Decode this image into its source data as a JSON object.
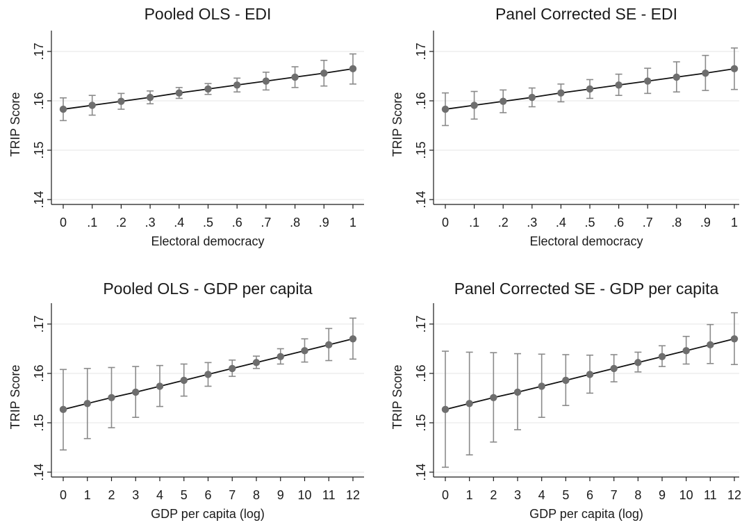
{
  "chart_data": [
    {
      "type": "scatter",
      "title": "Pooled OLS - EDI",
      "xlabel": "Electoral democracy",
      "ylabel": "TRIP Score",
      "x_ticks": [
        "0",
        ".1",
        ".2",
        ".3",
        ".4",
        ".5",
        ".6",
        ".7",
        ".8",
        ".9",
        "1"
      ],
      "y_ticks": [
        ".14",
        ".15",
        ".16",
        ".17"
      ],
      "xlim": [
        0,
        1
      ],
      "ylim": [
        0.14,
        0.17
      ],
      "grid": true,
      "series": [
        {
          "x": [
            0,
            0.1,
            0.2,
            0.3,
            0.4,
            0.5,
            0.6,
            0.7,
            0.8,
            0.9,
            1
          ],
          "y": [
            0.1583,
            0.1591,
            0.1599,
            0.1607,
            0.1616,
            0.1624,
            0.1632,
            0.164,
            0.1648,
            0.1656,
            0.1665
          ],
          "ci_low": [
            0.156,
            0.1571,
            0.1583,
            0.1594,
            0.1605,
            0.1613,
            0.1618,
            0.1622,
            0.1627,
            0.163,
            0.1634
          ],
          "ci_high": [
            0.1606,
            0.1611,
            0.1615,
            0.162,
            0.1627,
            0.1635,
            0.1646,
            0.1658,
            0.1669,
            0.1682,
            0.1695
          ]
        }
      ]
    },
    {
      "type": "scatter",
      "title": "Panel Corrected SE - EDI",
      "xlabel": "Electoral democracy",
      "ylabel": "TRIP Score",
      "x_ticks": [
        "0",
        ".1",
        ".2",
        ".3",
        ".4",
        ".5",
        ".6",
        ".7",
        ".8",
        ".9",
        "1"
      ],
      "y_ticks": [
        ".14",
        ".15",
        ".16",
        ".17"
      ],
      "xlim": [
        0,
        1
      ],
      "ylim": [
        0.14,
        0.17
      ],
      "grid": true,
      "series": [
        {
          "x": [
            0,
            0.1,
            0.2,
            0.3,
            0.4,
            0.5,
            0.6,
            0.7,
            0.8,
            0.9,
            1
          ],
          "y": [
            0.1583,
            0.1591,
            0.1599,
            0.1607,
            0.1616,
            0.1624,
            0.1632,
            0.164,
            0.1648,
            0.1656,
            0.1665
          ],
          "ci_low": [
            0.155,
            0.1563,
            0.1576,
            0.1588,
            0.1598,
            0.1605,
            0.1611,
            0.1615,
            0.1618,
            0.1621,
            0.1623
          ],
          "ci_high": [
            0.1616,
            0.1619,
            0.1622,
            0.1626,
            0.1634,
            0.1643,
            0.1654,
            0.1666,
            0.1679,
            0.1692,
            0.1707
          ]
        }
      ]
    },
    {
      "type": "scatter",
      "title": "Pooled OLS - GDP per capita",
      "xlabel": "GDP per capita (log)",
      "ylabel": "TRIP Score",
      "x_ticks": [
        "0",
        "1",
        "2",
        "3",
        "4",
        "5",
        "6",
        "7",
        "8",
        "9",
        "10",
        "11",
        "12"
      ],
      "y_ticks": [
        ".14",
        ".15",
        ".16",
        ".17"
      ],
      "xlim": [
        0,
        12
      ],
      "ylim": [
        0.14,
        0.17
      ],
      "grid": true,
      "series": [
        {
          "x": [
            0,
            1,
            2,
            3,
            4,
            5,
            6,
            7,
            8,
            9,
            10,
            11,
            12
          ],
          "y": [
            0.1527,
            0.1539,
            0.1551,
            0.1562,
            0.1574,
            0.1586,
            0.1598,
            0.161,
            0.1622,
            0.1634,
            0.1646,
            0.1658,
            0.167
          ],
          "ci_low": [
            0.1445,
            0.1468,
            0.149,
            0.1511,
            0.1533,
            0.1554,
            0.1574,
            0.1594,
            0.161,
            0.1619,
            0.1623,
            0.1626,
            0.1629
          ],
          "ci_high": [
            0.1608,
            0.161,
            0.1612,
            0.1614,
            0.1616,
            0.1619,
            0.1622,
            0.1627,
            0.1635,
            0.165,
            0.167,
            0.1691,
            0.1712
          ]
        }
      ]
    },
    {
      "type": "scatter",
      "title": "Panel Corrected SE - GDP per capita",
      "xlabel": "GDP per capita (log)",
      "ylabel": "TRIP Score",
      "x_ticks": [
        "0",
        "1",
        "2",
        "3",
        "4",
        "5",
        "6",
        "7",
        "8",
        "9",
        "10",
        "11",
        "12"
      ],
      "y_ticks": [
        ".14",
        ".15",
        ".16",
        ".17"
      ],
      "xlim": [
        0,
        12
      ],
      "ylim": [
        0.14,
        0.17
      ],
      "grid": true,
      "series": [
        {
          "x": [
            0,
            1,
            2,
            3,
            4,
            5,
            6,
            7,
            8,
            9,
            10,
            11,
            12
          ],
          "y": [
            0.1527,
            0.1539,
            0.1551,
            0.1562,
            0.1574,
            0.1586,
            0.1598,
            0.161,
            0.1622,
            0.1634,
            0.1646,
            0.1658,
            0.167
          ],
          "ci_low": [
            0.141,
            0.1435,
            0.1461,
            0.1486,
            0.1511,
            0.1535,
            0.156,
            0.1583,
            0.1603,
            0.1614,
            0.1619,
            0.162,
            0.1618
          ],
          "ci_high": [
            0.1645,
            0.1643,
            0.1642,
            0.164,
            0.1639,
            0.1638,
            0.1637,
            0.1638,
            0.1643,
            0.1656,
            0.1675,
            0.1699,
            0.1723
          ]
        }
      ]
    }
  ],
  "colors": {
    "marker": "#6e6e6e",
    "ci_bar": "#8a8a8a",
    "fit_line": "#111111",
    "grid": "#e4e4e4",
    "axis": "#1a1a1a"
  }
}
